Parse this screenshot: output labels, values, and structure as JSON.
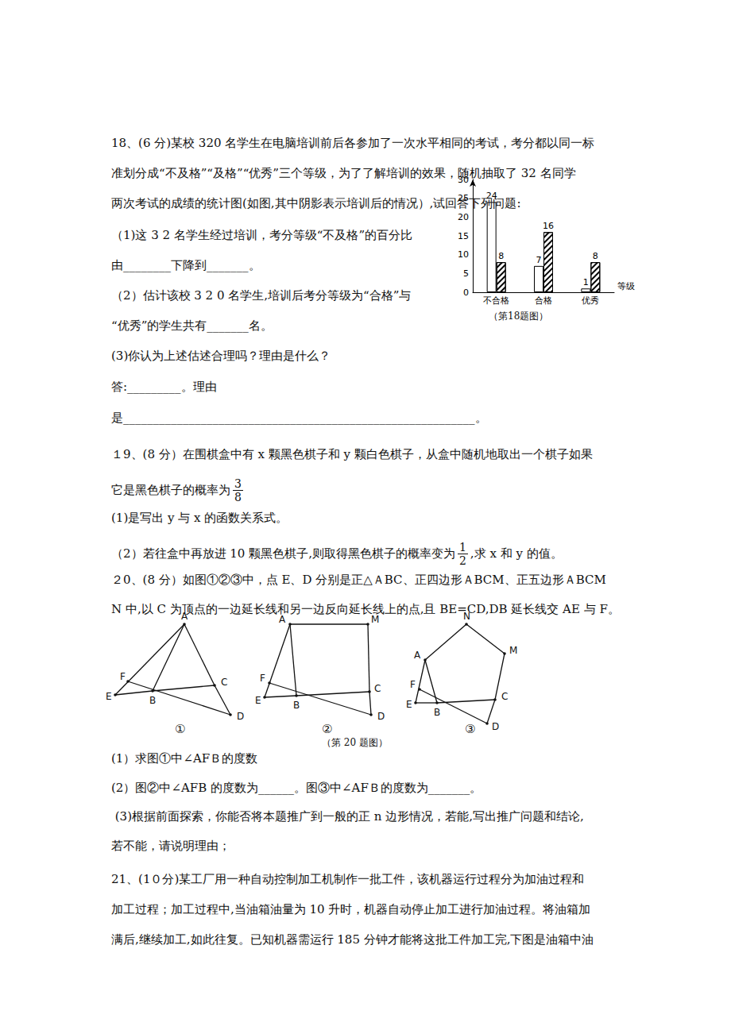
{
  "lines": [
    [
      "18、(6 分)某校 320 名学生在电脑培训前后各参加了一次水平相同的考试，考分都以同一标"
    ],
    [
      "准划分成“不及格”“及格”“优秀”三个等级，为了了解培训的效果，随机抽取了 32 名同学"
    ],
    [
      "两次考试的成绩的统计图(如图,其中阴影表示培训后的情况）,试回答下列问题:"
    ],
    [
      "（1)这 3 2 名学生经过培训，考分等级“不及格”的百分比"
    ],
    [
      "由________下降到_______。"
    ],
    [
      "（2）估计该校 3 2 0 名学生,培训后考分等级为“合格”与"
    ],
    [
      "“优秀”的学生共有_______名。"
    ],
    [
      "(3)你认为上述估述合理吗？理由是什么？"
    ],
    [
      "答:_________。理由"
    ],
    [
      "是___________________________________________________________。"
    ],
    [
      "１9、(8 分）在围棋盒中有 x 颗黑色棋子和 y 颗白色棋子，从盒中随机地取出一个棋子如果"
    ],
    [
      "它是黑色棋子的概率为",
      {
        "num": "3",
        "den": "8"
      }
    ],
    [
      "(1)是写出 y 与 x 的函数关系式。"
    ],
    [
      "（2）若往盒中再放进 10 颗黑色棋子,则取得黑色棋子的概率变为",
      {
        "num": "1",
        "den": "2"
      },
      ",求 x 和 y 的值。"
    ],
    [
      "２0、(8 分）如图①②③中，点 E、D 分别是正△ＡBC、正四边形ＡBCM、正五边形ＡBCM"
    ],
    [
      "N 中,以 C 为顶点的一边延长线和另一边反向延长线上的点,且 BE=CD,DB 延长线交 AE 与 F。"
    ],
    [
      "(1）求图①中∠AFＢ的度数"
    ],
    [
      "(2）图②中∠AFB 的度数为______。图③中∠AFＢ的度数为_______。"
    ],
    [
      " (3)根据前面探索，你能否将本题推广到一般的正 n 边形情况，若能,写出推广问题和结论,"
    ],
    [
      "若不能，请说明理由；"
    ],
    [
      "21、(1０分)某工厂用一种自动控制加工机制作一批工件，该机器运行过程分为加油过程和"
    ],
    [
      "加工过程；加工过程中,当油箱油量为 10 升时，机器自动停止加工进行加油过程。将油箱加"
    ],
    [
      "满后,继续加工,如此往复。已知机器需运行 185 分钟才能将这批工件加工完,下图是油箱中油"
    ]
  ],
  "chart_caption": "（第18题图）",
  "chart_data": {
    "type": "bar",
    "x_label": "等级",
    "categories": [
      "不合格",
      "合格",
      "优秀"
    ],
    "series": [
      {
        "values": [
          24,
          7,
          1
        ],
        "color": "#ffffff"
      },
      {
        "values": [
          8,
          16,
          8
        ],
        "color": "#ffffff"
      }
    ],
    "ylim": [
      0,
      30
    ],
    "yticks": [
      0,
      5,
      10,
      15,
      20,
      25,
      30
    ],
    "grid": false,
    "data_labels": true
  },
  "figures": [
    {
      "label": "①",
      "points": [
        "A",
        "B",
        "C",
        "D",
        "E",
        "F"
      ]
    },
    {
      "label": "②",
      "points": [
        "A",
        "M",
        "B",
        "C",
        "D",
        "E",
        "F"
      ]
    },
    {
      "label": "③",
      "points": [
        "N",
        "M",
        "A",
        "B",
        "C",
        "D",
        "E",
        "F"
      ]
    }
  ],
  "figure_caption": "（第 20 题图）"
}
